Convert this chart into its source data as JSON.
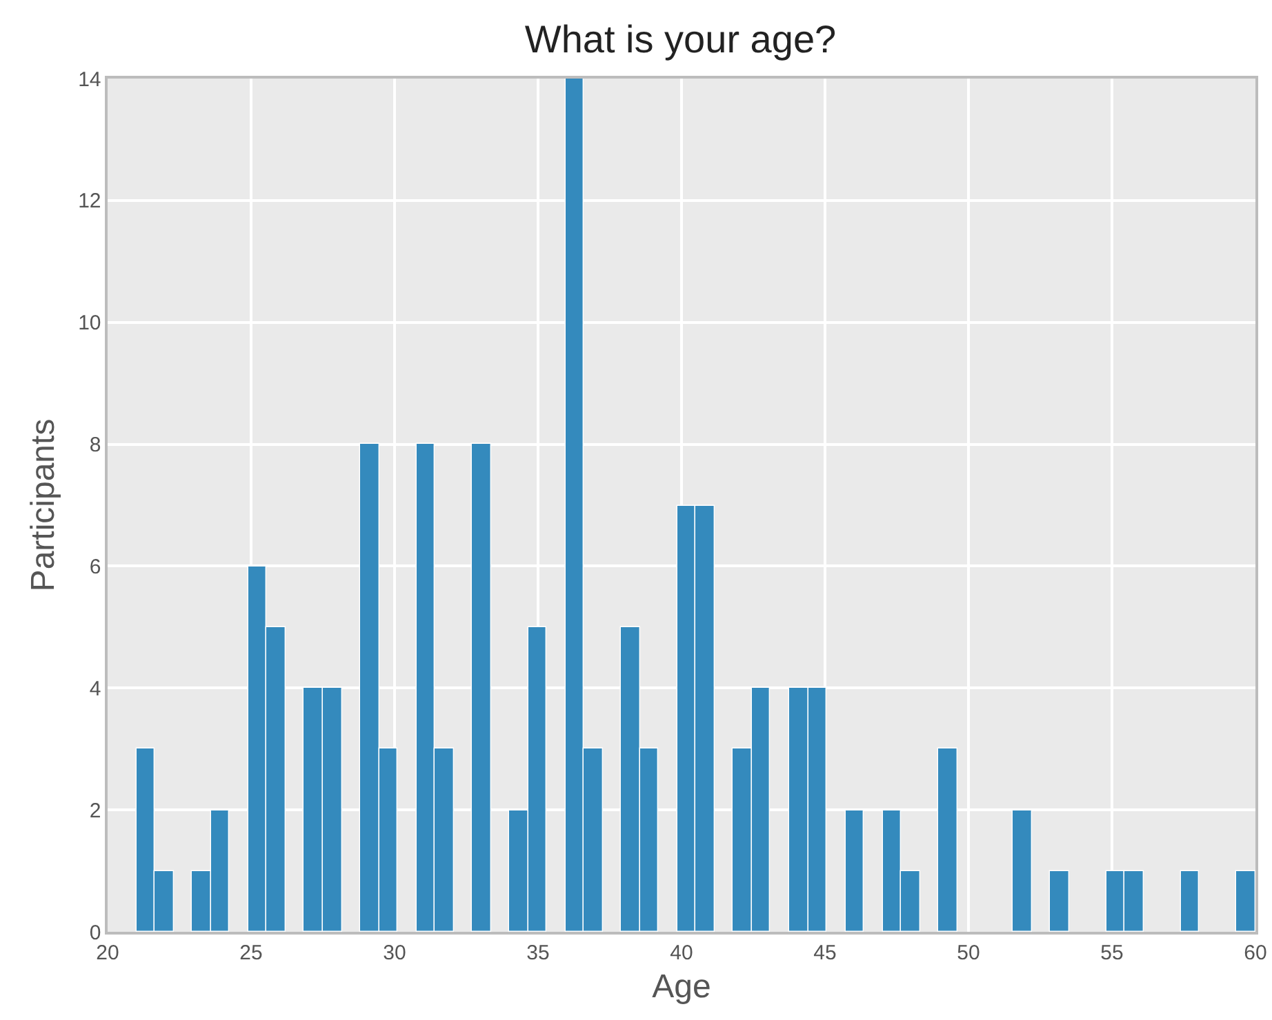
{
  "chart_data": {
    "type": "histogram",
    "title": "What is your age?",
    "xlabel": "Age",
    "ylabel": "Participants",
    "color": "#348abd",
    "bins": [
      21,
      21.65,
      22.3,
      22.95,
      23.6,
      24.25,
      24.9,
      25.55,
      26.2,
      26.85,
      27.5,
      28.15,
      28.8,
      29.45,
      30.1,
      30.75,
      31.4,
      32.05,
      32.7,
      33.35,
      34,
      34.65,
      35.3,
      35.95,
      36.6,
      37.25,
      37.9,
      38.55,
      39.2,
      39.85,
      40.5,
      41.15,
      41.8,
      42.45,
      43.1,
      43.75,
      44.4,
      45.05,
      45.7,
      46.35,
      47,
      47.65,
      48.3,
      48.95,
      49.6,
      50.25,
      50.9,
      51.55,
      52.2,
      52.85,
      53.5,
      54.15,
      54.8,
      55.45,
      56.1,
      56.75,
      57.4,
      58.05,
      58.7,
      59.35,
      60
    ],
    "values": [
      3,
      1,
      0,
      1,
      2,
      0,
      6,
      5,
      0,
      4,
      4,
      0,
      8,
      3,
      0,
      8,
      3,
      0,
      8,
      0,
      2,
      5,
      0,
      14,
      3,
      0,
      5,
      3,
      0,
      7,
      7,
      0,
      3,
      4,
      0,
      4,
      4,
      0,
      2,
      0,
      2,
      1,
      0,
      3,
      0,
      0,
      0,
      2,
      0,
      1,
      0,
      0,
      1,
      1,
      0,
      0,
      1,
      0,
      0,
      1
    ],
    "xlim": [
      20,
      60
    ],
    "xticks": [
      20,
      25,
      30,
      35,
      40,
      45,
      50,
      55,
      60
    ],
    "ylim": [
      0,
      14
    ],
    "yticks": [
      0,
      2,
      4,
      6,
      8,
      10,
      12,
      14
    ],
    "grid": true
  }
}
